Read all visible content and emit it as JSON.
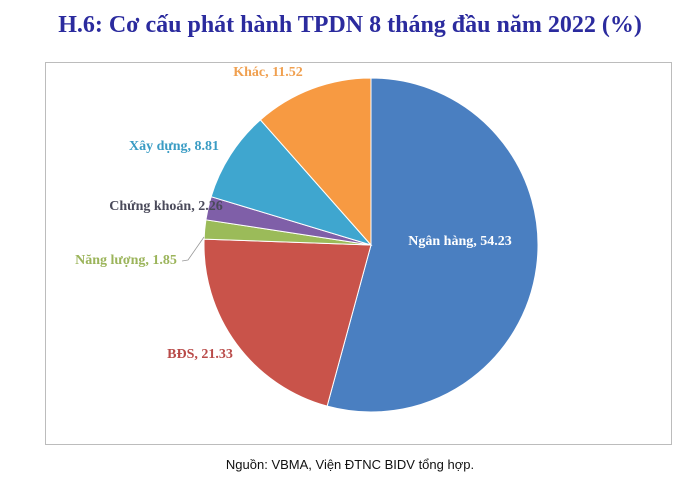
{
  "chart_data": {
    "type": "pie",
    "title": "H.6: Cơ cấu phát hành TPDN 8 tháng đầu năm 2022 (%)",
    "slices": [
      {
        "label": "Ngân hàng",
        "value": 54.23,
        "text": "Ngân hàng, 54.23",
        "color": "#4a7fc1",
        "label_color": "#ffffff"
      },
      {
        "label": "BĐS",
        "value": 21.33,
        "text": "BĐS, 21.33",
        "color": "#c9534a",
        "label_color": "#b94a48"
      },
      {
        "label": "Năng lượng",
        "value": 1.85,
        "text": "Năng lượng, 1.85",
        "color": "#9bbb59",
        "label_color": "#9bb45a"
      },
      {
        "label": "Chứng khoán",
        "value": 2.26,
        "text": "Chứng khoán, 2.26",
        "color": "#7f5fa8",
        "label_color": "#4a4a5a"
      },
      {
        "label": "Xây dựng",
        "value": 8.81,
        "text": "Xây dựng, 8.81",
        "color": "#3fa6cf",
        "label_color": "#3a9cc4"
      },
      {
        "label": "Khác",
        "value": 11.52,
        "text": "Khác, 11.52",
        "color": "#f79a42",
        "label_color": "#f0a050"
      }
    ],
    "start": "top",
    "direction": "clockwise",
    "legend": "none"
  },
  "source": "Nguồn: VBMA, Viện ĐTNC BIDV tổng hợp."
}
